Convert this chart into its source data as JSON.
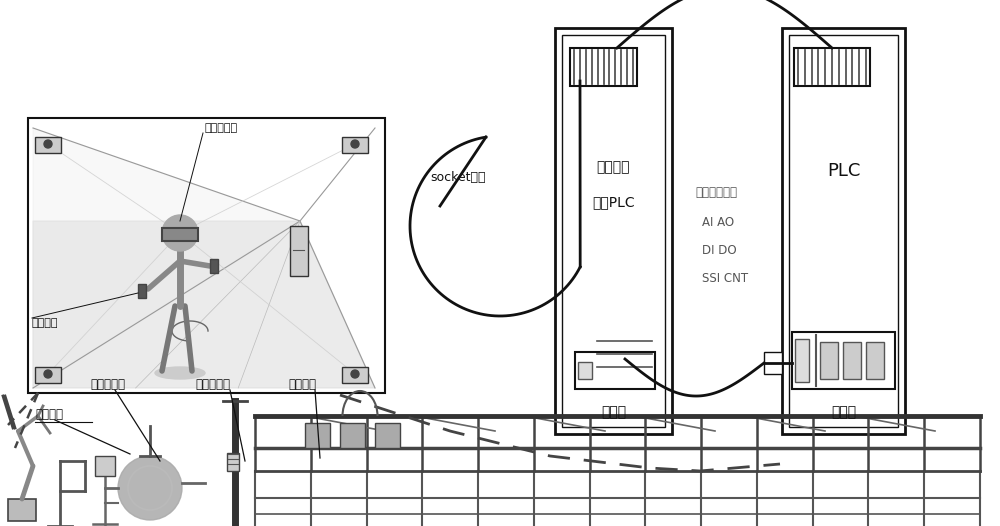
{
  "bg_color": "#ffffff",
  "label_toudai": "头戴显示器",
  "label_caozuo": "操作手柄",
  "label_xuni_chuanganqi": "虚拟传感器",
  "label_xuni_caozuoxiang": "虚拟操作箱",
  "label_xuni_shebei": "虚拟设备",
  "label_xuni_yibiao": "虚拟仪表",
  "socket_text": "socket通讯",
  "plc1_label1": "接口信号",
  "plc1_label2": "转化PLC",
  "plc1_sublabel": "交换机",
  "signal_text": [
    "各类工控信号",
    "AI AO",
    "DI DO",
    "SSI CNT"
  ],
  "plc2_label": "PLC",
  "plc2_sublabel": "工控机",
  "line_color": "#111111",
  "text_color": "#111111"
}
